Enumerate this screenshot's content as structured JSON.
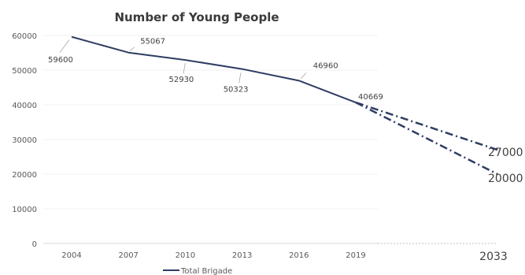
{
  "chart_data": {
    "type": "line",
    "title": "Number of Young People",
    "x": [
      "2004",
      "2007",
      "2010",
      "2013",
      "2016",
      "2019"
    ],
    "series": [
      {
        "name": "Total Brigade",
        "values": [
          59600,
          55067,
          52930,
          50323,
          46960,
          40669
        ],
        "color": "#2f3d63",
        "style": "solid"
      }
    ],
    "projections": [
      {
        "from_x": "2019",
        "from_value": 40669,
        "to_x": "2033",
        "to_value": 27000,
        "label": "27000",
        "color": "#2f3d63",
        "style": "dash-dot"
      },
      {
        "from_x": "2019",
        "from_value": 40669,
        "to_x": "2033",
        "to_value": 20000,
        "label": "20000",
        "color": "#2f3d63",
        "style": "dash-dot"
      }
    ],
    "extended_x_label": "2033",
    "ylim": [
      0,
      60000
    ],
    "yticks": [
      0,
      10000,
      20000,
      30000,
      40000,
      50000,
      60000
    ],
    "data_labels": [
      "59600",
      "55067",
      "52930",
      "50323",
      "46960",
      "40669"
    ],
    "grid": true,
    "legend": "bottom"
  }
}
